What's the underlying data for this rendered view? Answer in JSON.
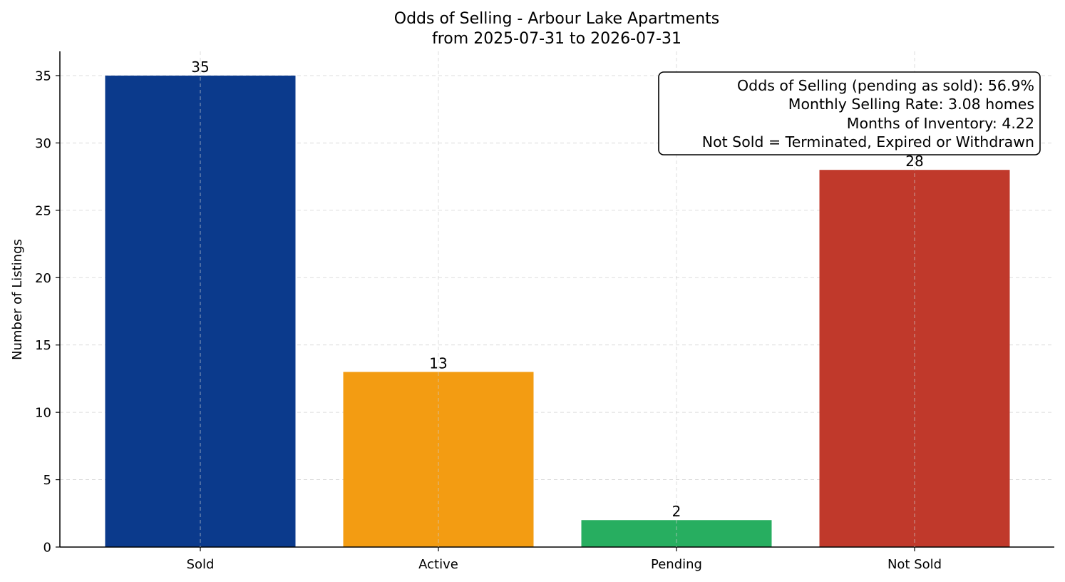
{
  "chart_data": {
    "type": "bar",
    "title": "Odds of Selling - Arbour Lake Apartments",
    "subtitle": "from 2025-07-31 to 2026-07-31",
    "xlabel": "",
    "ylabel": "Number of Listings",
    "categories": [
      "Sold",
      "Active",
      "Pending",
      "Not Sold"
    ],
    "values": [
      35,
      13,
      2,
      28
    ],
    "colors": [
      "#0b3a8c",
      "#f39c12",
      "#27ae60",
      "#c0392b"
    ],
    "ylim": [
      0,
      36.8
    ],
    "yticks": [
      0,
      5,
      10,
      15,
      20,
      25,
      30,
      35
    ],
    "grid": true,
    "annotation_box": {
      "placement": "top-right",
      "lines": [
        "Odds of Selling (pending as sold): 56.9%",
        "Monthly Selling Rate: 3.08 homes",
        "Months of Inventory: 4.22",
        "Not Sold = Terminated, Expired or Withdrawn"
      ]
    }
  }
}
